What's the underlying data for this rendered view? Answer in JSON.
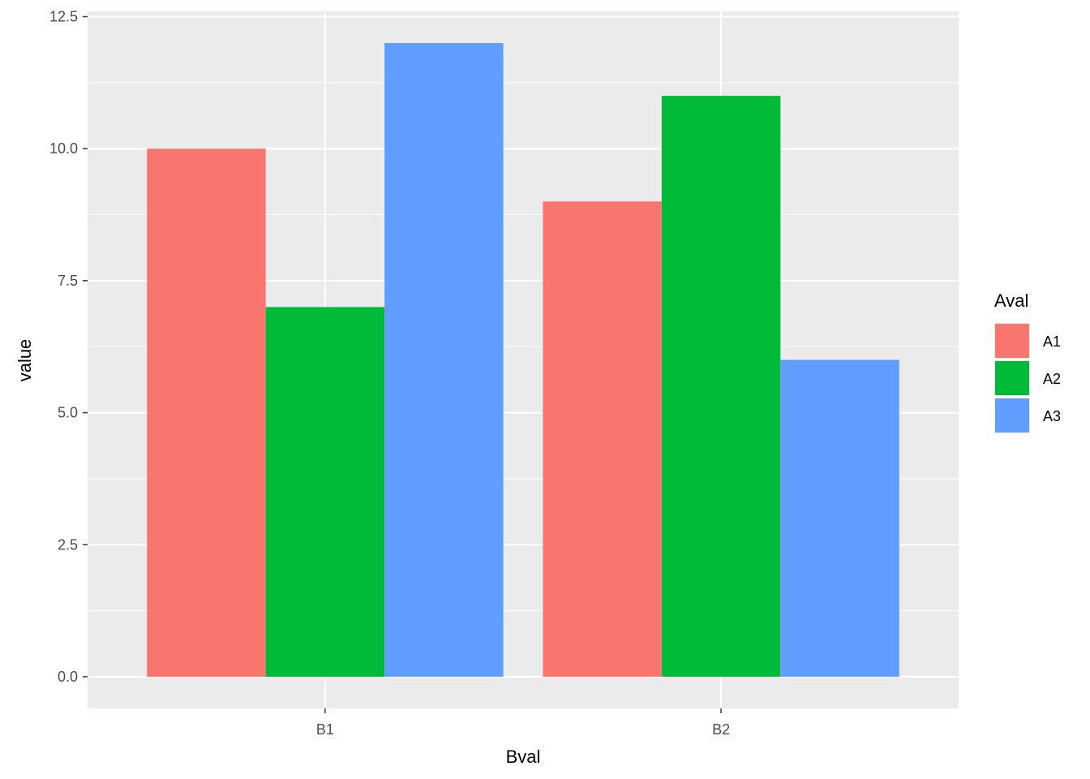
{
  "chart_data": {
    "type": "bar",
    "title": "",
    "xlabel": "Bval",
    "ylabel": "value",
    "categories": [
      "B1",
      "B2"
    ],
    "series": [
      {
        "name": "A1",
        "values": [
          10,
          9
        ],
        "color": "#F8766D"
      },
      {
        "name": "A2",
        "values": [
          7,
          11
        ],
        "color": "#00BA38"
      },
      {
        "name": "A3",
        "values": [
          12,
          6
        ],
        "color": "#619CFF"
      }
    ],
    "ylim": [
      -0.6,
      12.6
    ],
    "yticks": [
      0,
      2.5,
      5,
      7.5,
      10,
      12.5
    ],
    "ytick_labels": [
      "0.0",
      "2.5",
      "5.0",
      "7.5",
      "10.0",
      "12.5"
    ],
    "grid": true,
    "panel_background": "#EBEBEB",
    "legend": {
      "title": "Aval",
      "placement": "right"
    }
  }
}
